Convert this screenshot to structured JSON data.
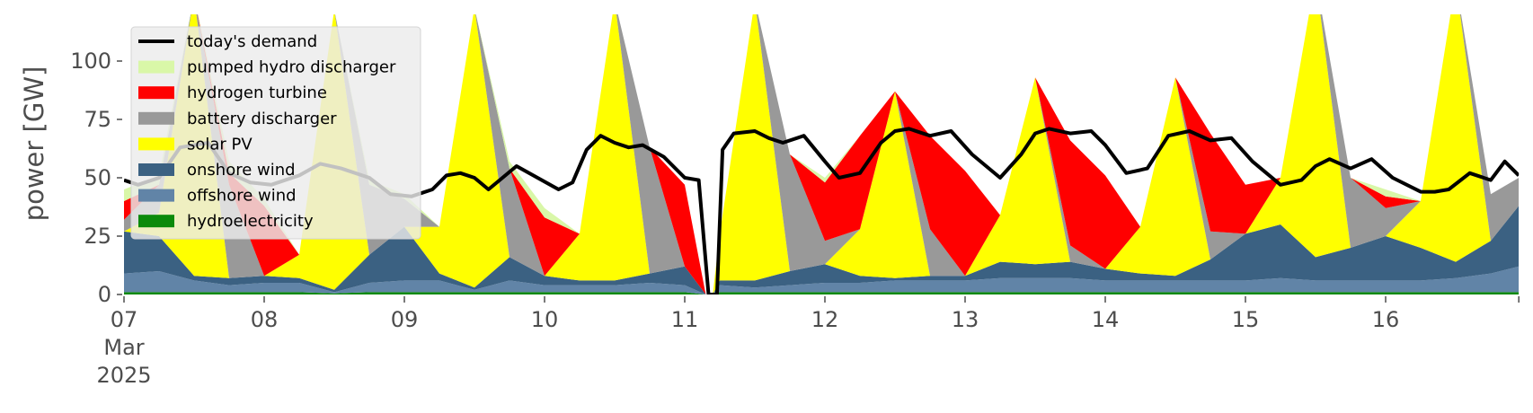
{
  "chart_data": {
    "type": "area",
    "title": "",
    "xlabel": "",
    "ylabel": "power [GW]",
    "ylim": [
      0,
      120
    ],
    "yticks": [
      0,
      25,
      50,
      75,
      100
    ],
    "xticks": [
      {
        "day": 7,
        "lines": [
          "07",
          "Mar",
          "2025"
        ]
      },
      {
        "day": 8,
        "lines": [
          "08"
        ]
      },
      {
        "day": 9,
        "lines": [
          "09"
        ]
      },
      {
        "day": 10,
        "lines": [
          "10"
        ]
      },
      {
        "day": 11,
        "lines": [
          "11"
        ]
      },
      {
        "day": 12,
        "lines": [
          "12"
        ]
      },
      {
        "day": 13,
        "lines": [
          "13"
        ]
      },
      {
        "day": 14,
        "lines": [
          "14"
        ]
      },
      {
        "day": 15,
        "lines": [
          "15"
        ]
      },
      {
        "day": 16,
        "lines": [
          "16"
        ]
      }
    ],
    "xlim_days": [
      7.0,
      16.95
    ],
    "grid": false,
    "background": "#ffffff",
    "legend": {
      "placement": "top-left",
      "items": [
        {
          "label": "today's demand",
          "color": "#000000",
          "kind": "line"
        },
        {
          "label": "pumped hydro discharger",
          "color": "#d9f7a8",
          "kind": "patch"
        },
        {
          "label": "hydrogen turbine",
          "color": "#ff0000",
          "kind": "patch"
        },
        {
          "label": "battery discharger",
          "color": "#999999",
          "kind": "patch"
        },
        {
          "label": "solar PV",
          "color": "#ffff00",
          "kind": "patch"
        },
        {
          "label": "onshore wind",
          "color": "#3b6182",
          "kind": "patch"
        },
        {
          "label": "offshore wind",
          "color": "#6184a7",
          "kind": "patch"
        },
        {
          "label": "hydroelectricity",
          "color": "#0b8a0b",
          "kind": "patch"
        }
      ]
    },
    "stack_order": [
      "hydroelectricity",
      "offshore wind",
      "onshore wind",
      "solar PV",
      "battery discharger",
      "hydrogen turbine",
      "pumped hydro discharger"
    ],
    "x_days": [
      7.0,
      7.25,
      7.5,
      7.75,
      8.0,
      8.25,
      8.5,
      8.75,
      9.0,
      9.25,
      9.5,
      9.75,
      10.0,
      10.25,
      10.5,
      10.75,
      11.0,
      11.15,
      11.2,
      11.25,
      11.5,
      11.75,
      12.0,
      12.25,
      12.5,
      12.75,
      13.0,
      13.25,
      13.5,
      13.75,
      14.0,
      14.25,
      14.5,
      14.75,
      15.0,
      15.25,
      15.5,
      15.75,
      16.0,
      16.25,
      16.5,
      16.75,
      16.95
    ],
    "series": [
      {
        "name": "hydroelectricity",
        "color": "#0b8a0b",
        "values": [
          1,
          1,
          1,
          1,
          1,
          1,
          0.5,
          1,
          1,
          1,
          1,
          1,
          1,
          1,
          1,
          1,
          1,
          0,
          0,
          1,
          1,
          1,
          1,
          1,
          1,
          1,
          1,
          1,
          1,
          1,
          1,
          1,
          1,
          1,
          1,
          1,
          1,
          1,
          1,
          1,
          1,
          1,
          1
        ]
      },
      {
        "name": "offshore wind",
        "color": "#6184a7",
        "values": [
          8,
          9,
          5,
          3,
          4,
          4,
          0.5,
          4,
          5,
          5,
          1,
          5,
          3,
          3,
          3,
          4,
          3,
          0,
          0,
          3,
          2,
          3,
          4,
          4,
          5,
          5,
          5,
          6,
          6,
          6,
          5,
          5,
          5,
          5,
          5,
          6,
          5,
          5,
          5,
          5,
          6,
          8,
          11
        ]
      },
      {
        "name": "onshore wind",
        "color": "#3b6182",
        "values": [
          18,
          15,
          2,
          3,
          3,
          2,
          1,
          12,
          23,
          3,
          1,
          10,
          4,
          2,
          2,
          4,
          8,
          0,
          0,
          2,
          3,
          6,
          8,
          3,
          1,
          2,
          2,
          7,
          6,
          7,
          5,
          3,
          2,
          9,
          20,
          23,
          10,
          14,
          19,
          14,
          7,
          14,
          26
        ]
      },
      {
        "name": "solar PV",
        "color": "#ffff00",
        "values": [
          0,
          10,
          120,
          0,
          0,
          10,
          120,
          0,
          0,
          20,
          120,
          0,
          0,
          20,
          120,
          0,
          0,
          0,
          0,
          20,
          120,
          0,
          0,
          20,
          80,
          0,
          0,
          20,
          80,
          0,
          0,
          20,
          85,
          0,
          0,
          20,
          120,
          0,
          0,
          20,
          120,
          0,
          0
        ]
      },
      {
        "name": "battery discharger",
        "color": "#999999",
        "values": [
          5,
          12,
          0,
          40,
          0,
          0,
          0,
          30,
          12,
          0,
          0,
          38,
          0,
          0,
          0,
          54,
          0,
          0,
          0,
          0,
          0,
          50,
          10,
          0,
          0,
          20,
          0,
          0,
          0,
          7,
          0,
          0,
          0,
          12,
          0,
          0,
          0,
          30,
          12,
          0,
          0,
          20,
          12
        ]
      },
      {
        "name": "hydrogen turbine",
        "color": "#ff0000",
        "values": [
          8,
          0,
          0,
          5,
          30,
          0,
          0,
          0,
          0,
          0,
          0,
          0,
          25,
          0,
          0,
          0,
          35,
          0,
          0,
          0,
          0,
          0,
          25,
          40,
          0,
          40,
          45,
          0,
          0,
          45,
          40,
          0,
          0,
          42,
          21,
          0,
          0,
          0,
          5,
          0,
          0,
          0,
          0
        ]
      },
      {
        "name": "pumped hydro discharger",
        "color": "#d9f7a8",
        "values": [
          5,
          4,
          0,
          5,
          3,
          0,
          0,
          2,
          2,
          0,
          0,
          3,
          4,
          0,
          0,
          0,
          0,
          0,
          0,
          0,
          0,
          0,
          2,
          0,
          0,
          0,
          0,
          0,
          0,
          0,
          0,
          0,
          0,
          0,
          0,
          0,
          0,
          0,
          3,
          0,
          0,
          0,
          0
        ]
      }
    ],
    "demand": {
      "name": "today's demand",
      "color": "#000000",
      "x_days": [
        7.0,
        7.1,
        7.25,
        7.4,
        7.6,
        7.75,
        7.9,
        8.05,
        8.25,
        8.4,
        8.55,
        8.75,
        8.9,
        9.05,
        9.2,
        9.3,
        9.4,
        9.5,
        9.6,
        9.7,
        9.8,
        9.95,
        10.1,
        10.2,
        10.3,
        10.4,
        10.5,
        10.6,
        10.7,
        10.85,
        11.0,
        11.1,
        11.17,
        11.2,
        11.23,
        11.27,
        11.35,
        11.5,
        11.6,
        11.7,
        11.85,
        12.0,
        12.1,
        12.25,
        12.4,
        12.5,
        12.6,
        12.75,
        12.9,
        13.05,
        13.25,
        13.4,
        13.5,
        13.6,
        13.75,
        13.9,
        14.0,
        14.15,
        14.3,
        14.45,
        14.6,
        14.75,
        14.9,
        15.05,
        15.25,
        15.4,
        15.5,
        15.6,
        15.75,
        15.9,
        16.05,
        16.25,
        16.35,
        16.45,
        16.6,
        16.75,
        16.85,
        16.95
      ],
      "values": [
        49,
        47,
        50,
        63,
        65,
        52,
        48,
        47,
        51,
        56,
        54,
        50,
        43,
        42,
        45,
        51,
        52,
        50,
        45,
        50,
        55,
        50,
        45,
        48,
        62,
        68,
        65,
        63,
        64,
        59,
        50,
        49,
        0,
        0,
        0,
        62,
        69,
        70,
        67,
        65,
        68,
        57,
        50,
        52,
        65,
        70,
        71,
        68,
        70,
        60,
        50,
        60,
        69,
        71,
        69,
        70,
        64,
        52,
        54,
        68,
        70,
        66,
        67,
        57,
        47,
        49,
        55,
        58,
        54,
        58,
        50,
        44,
        44,
        45,
        52,
        49,
        57,
        51
      ]
    }
  }
}
